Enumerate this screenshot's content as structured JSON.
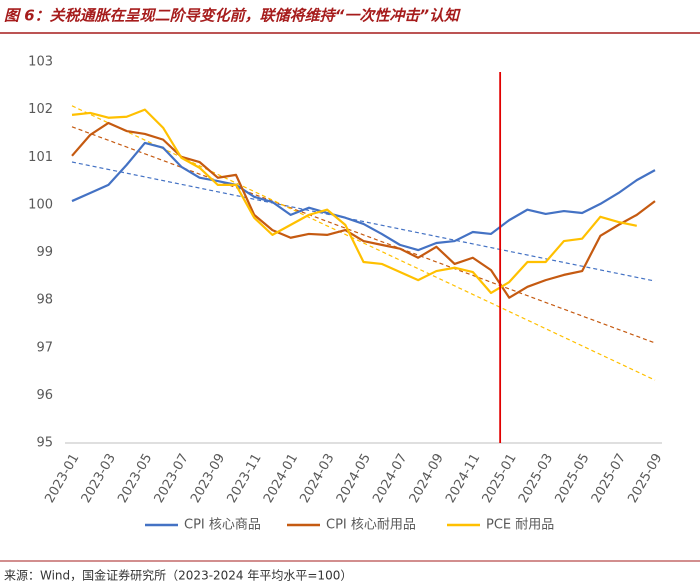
{
  "chart_data": {
    "type": "line",
    "title": "图 6：关税通胀在呈现二阶导变化前，联储将维持“一次性冲击”认知",
    "source": "来源：Wind，国金证券研究所（2023-2024 年平均水平=100）",
    "categories": [
      "2023-01",
      null,
      "2023-03",
      null,
      "2023-05",
      null,
      "2023-07",
      null,
      "2023-09",
      null,
      "2023-11",
      null,
      "2024-01",
      null,
      "2024-03",
      null,
      "2024-05",
      null,
      "2024-07",
      null,
      "2024-09",
      null,
      "2024-11",
      null,
      "2025-01",
      null,
      "2025-03",
      null,
      "2025-05",
      null,
      "2025-07",
      null,
      "2025-09"
    ],
    "series": [
      {
        "name": "CPI 核心商品",
        "color": "#4472c4",
        "values": [
          100.08,
          100.25,
          100.42,
          100.84,
          101.3,
          101.2,
          100.8,
          100.57,
          100.5,
          100.42,
          100.17,
          100.06,
          99.79,
          99.94,
          99.83,
          99.73,
          99.6,
          99.39,
          99.16,
          99.05,
          99.2,
          99.24,
          99.43,
          99.39,
          99.68,
          99.9,
          99.81,
          99.87,
          99.83,
          100.02,
          100.25,
          100.52,
          100.73
        ]
      },
      {
        "name": "CPI 核心耐用品",
        "color": "#c55a11",
        "values": [
          101.03,
          101.47,
          101.72,
          101.55,
          101.49,
          101.37,
          101.01,
          100.9,
          100.57,
          100.63,
          99.79,
          99.47,
          99.31,
          99.39,
          99.37,
          99.47,
          99.24,
          99.16,
          99.08,
          98.89,
          99.12,
          98.76,
          98.89,
          98.63,
          98.05,
          98.28,
          98.42,
          98.53,
          98.61,
          99.35,
          99.58,
          99.79,
          100.08
        ]
      },
      {
        "name": "PCE 耐用品",
        "color": "#ffc000",
        "values": [
          101.89,
          101.93,
          101.83,
          101.85,
          102.0,
          101.62,
          100.99,
          100.78,
          100.42,
          100.42,
          99.73,
          99.37,
          99.58,
          99.79,
          99.9,
          99.58,
          98.8,
          98.76,
          98.59,
          98.42,
          98.61,
          98.68,
          98.59,
          98.15,
          98.38,
          98.8,
          98.8,
          99.24,
          99.29,
          99.75,
          99.64,
          99.56,
          null
        ]
      }
    ],
    "trendlines": [
      {
        "color": "#4472c4",
        "start": 100.9,
        "end": 98.4
      },
      {
        "color": "#c55a11",
        "start": 101.64,
        "end": 97.1
      },
      {
        "color": "#ffc000",
        "start": 102.08,
        "end": 96.32
      }
    ],
    "vline_x": 23.5,
    "vline_color": "#e00000",
    "ylim": [
      95,
      103
    ],
    "yticks": [
      95,
      96,
      97,
      98,
      99,
      100,
      101,
      102,
      103
    ]
  }
}
